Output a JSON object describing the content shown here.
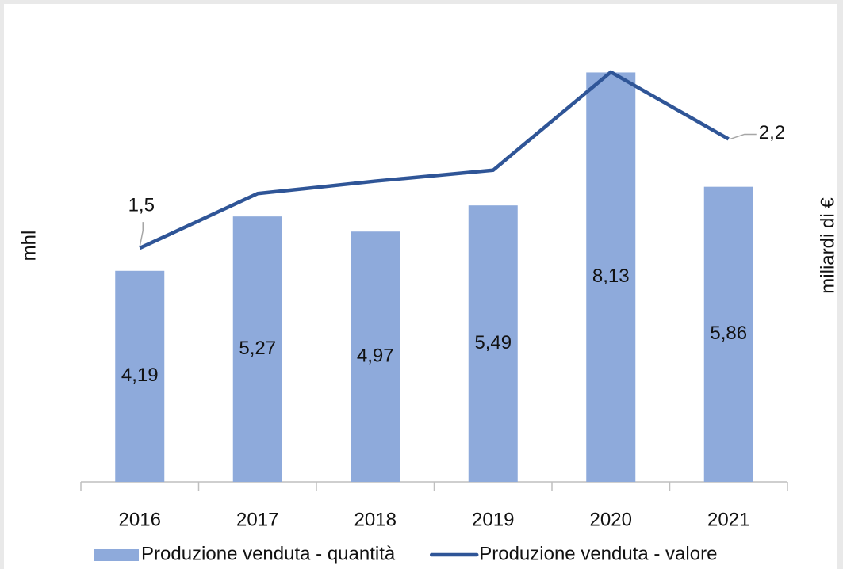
{
  "chart_data": {
    "type": "bar_line",
    "categories": [
      "2016",
      "2017",
      "2018",
      "2019",
      "2020",
      "2021"
    ],
    "series": [
      {
        "name": "Produzione venduta - quantità",
        "type": "bar",
        "color": "#8eaadb",
        "values": [
          4.19,
          5.27,
          4.97,
          5.49,
          8.13,
          5.86
        ],
        "value_labels": [
          "4,19",
          "5,27",
          "4,97",
          "5,49",
          "8,13",
          "5,86"
        ]
      },
      {
        "name": "Produzione venduta - valore",
        "type": "line",
        "axis": "y2",
        "color": "#2f5597",
        "values": [
          1.5,
          1.85,
          1.93,
          2.0,
          2.63,
          2.2
        ],
        "value_labels": [
          "1,5",
          null,
          null,
          null,
          null,
          "2,2"
        ]
      }
    ],
    "ylabel": "mhl",
    "y2label": "miliardi di €",
    "ylim": [
      0,
      8.2
    ],
    "y2lim": [
      0,
      2.65
    ]
  }
}
